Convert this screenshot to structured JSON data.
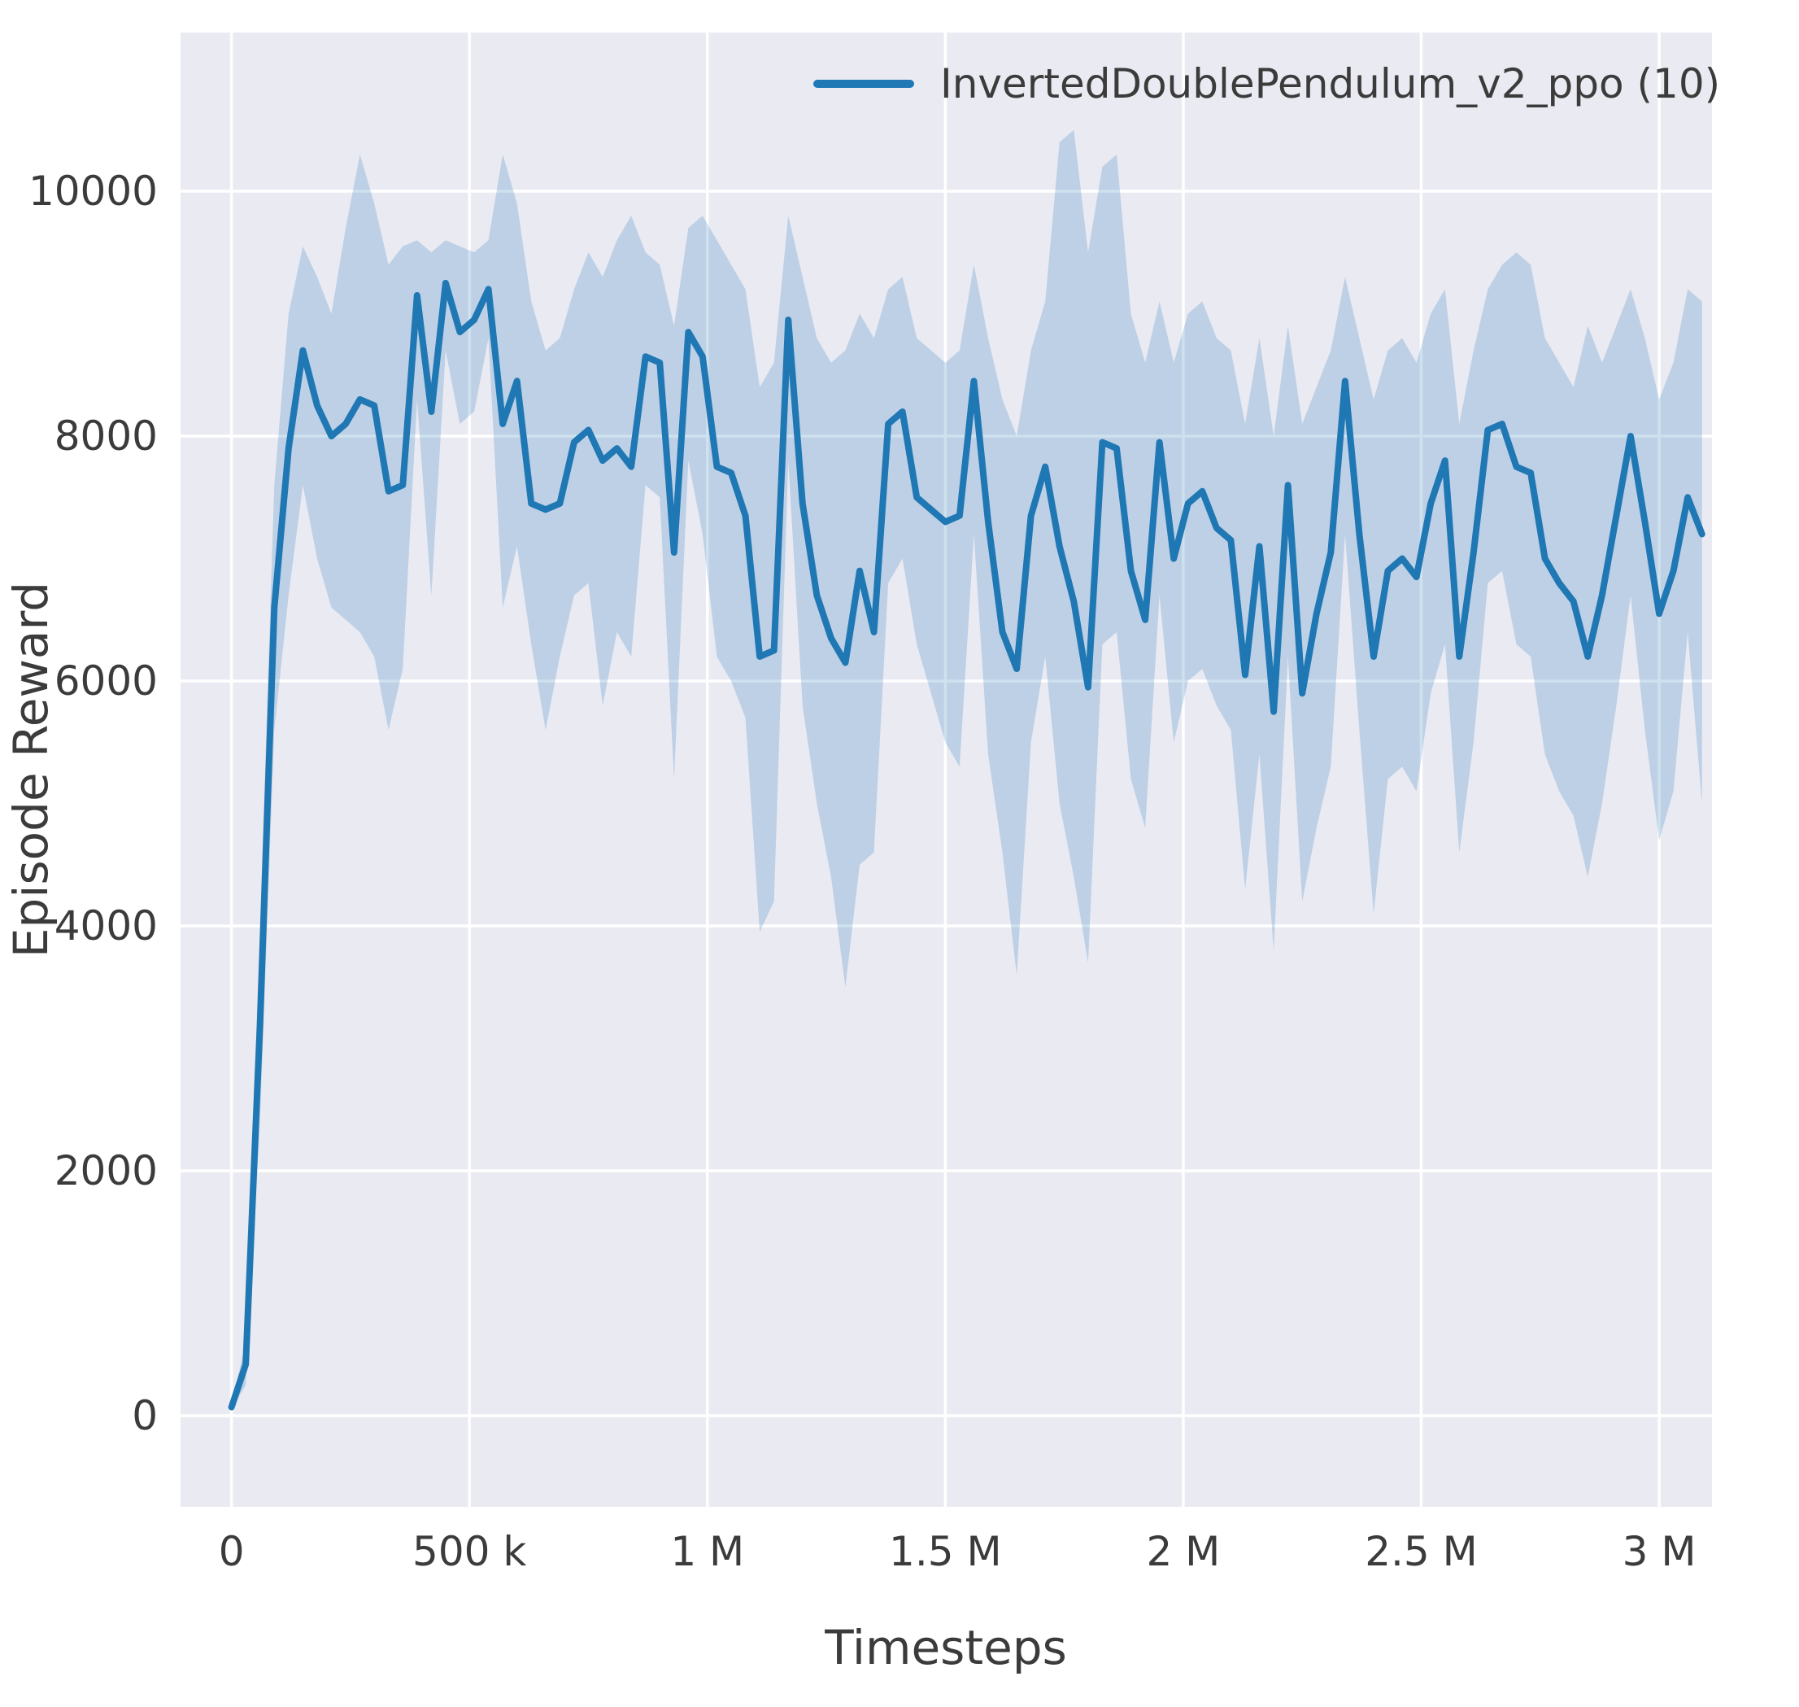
{
  "chart_data": {
    "type": "line",
    "title": "",
    "xlabel": "Timesteps",
    "ylabel": "Episode Reward",
    "grid": true,
    "legend_position": "upper right",
    "legend": [
      {
        "label": "InvertedDoublePendulum_v2_ppo (10)",
        "color": "#1f77b4"
      }
    ],
    "xlim": [
      -107000,
      3111000
    ],
    "ylim": [
      -744,
      11296
    ],
    "x_ticks": {
      "values": [
        0,
        500000,
        1000000,
        1500000,
        2000000,
        2500000,
        3000000
      ],
      "labels": [
        "0",
        "500 k",
        "1 M",
        "1.5 M",
        "2 M",
        "2.5 M",
        "3 M"
      ]
    },
    "y_ticks": {
      "values": [
        0,
        2000,
        4000,
        6000,
        8000,
        10000
      ],
      "labels": [
        "0",
        "2000",
        "4000",
        "6000",
        "8000",
        "10000"
      ]
    },
    "colors": {
      "line": "#1f77b4",
      "band": "#1f77b4",
      "plot_bg": "#eaeaf2",
      "grid": "#ffffff",
      "tick_text": "#3b3b3b"
    },
    "series": [
      {
        "name": "InvertedDoublePendulum_v2_ppo (10)",
        "color": "#1f77b4",
        "band_color": "#1f77b4",
        "band_opacity": 0.22,
        "x": [
          0,
          30000,
          60000,
          90000,
          120000,
          150000,
          180000,
          210000,
          240000,
          270000,
          300000,
          330000,
          360000,
          390000,
          420000,
          450000,
          480000,
          510000,
          540000,
          570000,
          600000,
          630000,
          660000,
          690000,
          720000,
          750000,
          780000,
          810000,
          840000,
          870000,
          900000,
          930000,
          960000,
          990000,
          1020000,
          1050000,
          1080000,
          1110000,
          1140000,
          1170000,
          1200000,
          1230000,
          1260000,
          1290000,
          1320000,
          1350000,
          1380000,
          1410000,
          1440000,
          1470000,
          1500000,
          1530000,
          1560000,
          1590000,
          1620000,
          1650000,
          1680000,
          1710000,
          1740000,
          1770000,
          1800000,
          1830000,
          1860000,
          1890000,
          1920000,
          1950000,
          1980000,
          2010000,
          2040000,
          2070000,
          2100000,
          2130000,
          2160000,
          2190000,
          2220000,
          2250000,
          2280000,
          2310000,
          2340000,
          2370000,
          2400000,
          2430000,
          2460000,
          2490000,
          2520000,
          2550000,
          2580000,
          2610000,
          2640000,
          2670000,
          2700000,
          2730000,
          2760000,
          2790000,
          2820000,
          2850000,
          2880000,
          2910000,
          2940000,
          2970000,
          3000000,
          3030000,
          3060000,
          3090000
        ],
        "mean": [
          70,
          420,
          3200,
          6600,
          7900,
          8700,
          8250,
          8000,
          8100,
          8300,
          8250,
          7550,
          7600,
          9150,
          8200,
          9250,
          8850,
          8950,
          9200,
          8100,
          8450,
          7450,
          7400,
          7450,
          7950,
          8050,
          7800,
          7900,
          7750,
          8650,
          8600,
          7050,
          8850,
          8650,
          7750,
          7700,
          7350,
          6200,
          6250,
          8950,
          7450,
          6700,
          6350,
          6150,
          6900,
          6400,
          8100,
          8200,
          7500,
          7400,
          7300,
          7350,
          8450,
          7300,
          6400,
          6100,
          7350,
          7750,
          7100,
          6650,
          5950,
          7950,
          7900,
          6900,
          6500,
          7950,
          7000,
          7450,
          7550,
          7250,
          7150,
          6050,
          7100,
          5750,
          7600,
          5900,
          6550,
          7050,
          8450,
          7200,
          6200,
          6900,
          7000,
          6850,
          7450,
          7800,
          6200,
          7050,
          8050,
          8100,
          7750,
          7700,
          7000,
          6800,
          6650,
          6200,
          6700,
          7350,
          8000,
          7300,
          6550,
          6900,
          7500,
          7200
        ],
        "lower": [
          50,
          250,
          2400,
          5600,
          6700,
          7600,
          7000,
          6600,
          6500,
          6400,
          6200,
          5600,
          6100,
          8300,
          6700,
          8700,
          8100,
          8200,
          8800,
          6600,
          7100,
          6300,
          5600,
          6200,
          6700,
          6800,
          5800,
          6400,
          6200,
          7600,
          7500,
          5200,
          7800,
          7200,
          6200,
          6000,
          5700,
          3950,
          4200,
          7800,
          5800,
          5000,
          4400,
          3500,
          4500,
          4600,
          6800,
          7000,
          6300,
          5900,
          5500,
          5300,
          7200,
          5400,
          4600,
          3600,
          5500,
          6200,
          5000,
          4400,
          3700,
          6300,
          6400,
          5200,
          4800,
          6700,
          5500,
          6000,
          6100,
          5800,
          5600,
          4300,
          5400,
          3800,
          6200,
          4200,
          4800,
          5300,
          7200,
          5600,
          4100,
          5200,
          5300,
          5100,
          5900,
          6300,
          4600,
          5500,
          6800,
          6900,
          6300,
          6200,
          5400,
          5100,
          4900,
          4400,
          5000,
          5800,
          6700,
          5600,
          4700,
          5100,
          6400,
          5000
        ],
        "upper": [
          90,
          600,
          4000,
          7600,
          9000,
          9550,
          9300,
          9000,
          9700,
          10300,
          9900,
          9400,
          9550,
          9600,
          9500,
          9600,
          9550,
          9500,
          9600,
          10300,
          9900,
          9100,
          8700,
          8800,
          9200,
          9500,
          9300,
          9600,
          9800,
          9500,
          9400,
          8900,
          9700,
          9800,
          9600,
          9400,
          9200,
          8400,
          8600,
          9800,
          9300,
          8800,
          8600,
          8700,
          9000,
          8800,
          9200,
          9300,
          8800,
          8700,
          8600,
          8700,
          9400,
          8800,
          8300,
          8000,
          8700,
          9100,
          10400,
          10500,
          9500,
          10200,
          10300,
          9000,
          8600,
          9100,
          8600,
          9000,
          9100,
          8800,
          8700,
          8100,
          8800,
          8000,
          8900,
          8100,
          8400,
          8700,
          9300,
          8800,
          8300,
          8700,
          8800,
          8600,
          9000,
          9200,
          8100,
          8700,
          9200,
          9400,
          9500,
          9400,
          8800,
          8600,
          8400,
          8900,
          8600,
          8900,
          9200,
          8800,
          8300,
          8600,
          9200,
          9100
        ]
      }
    ]
  }
}
